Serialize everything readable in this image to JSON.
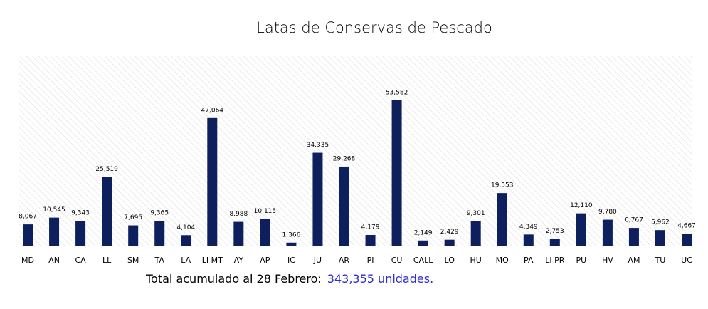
{
  "chart_data": {
    "type": "bar",
    "title": "Latas de Conservas de Pescado",
    "categories": [
      "MD",
      "AN",
      "CA",
      "LL",
      "SM",
      "TA",
      "LA",
      "LI MT",
      "AY",
      "AP",
      "IC",
      "JU",
      "AR",
      "PI",
      "CU",
      "CALL",
      "LO",
      "HU",
      "MO",
      "PA",
      "LI PR",
      "PU",
      "HV",
      "AM",
      "TU",
      "UC"
    ],
    "values": [
      8067,
      10545,
      9343,
      25519,
      7695,
      9365,
      4104,
      47064,
      8988,
      10115,
      1366,
      34335,
      29268,
      4179,
      53582,
      2149,
      2429,
      9301,
      19553,
      4349,
      2753,
      12110,
      9780,
      6767,
      5962,
      4667
    ],
    "value_labels": [
      "8,067",
      "10,545",
      "9,343",
      "25,519",
      "7,695",
      "9,365",
      "4,104",
      "47,064",
      "8,988",
      "10,115",
      "1,366",
      "34,335",
      "29,268",
      "4,179",
      "53,582",
      "2,149",
      "2,429",
      "9,301",
      "19,553",
      "4,349",
      "2,753",
      "12,110",
      "9,780",
      "6,767",
      "5,962",
      "4,667"
    ],
    "color": "#0d1f5c",
    "ylim": [
      0,
      70000
    ],
    "footer": {
      "text": "Total acumulado al 28 Febrero:",
      "total": "343,355 unidades."
    }
  }
}
